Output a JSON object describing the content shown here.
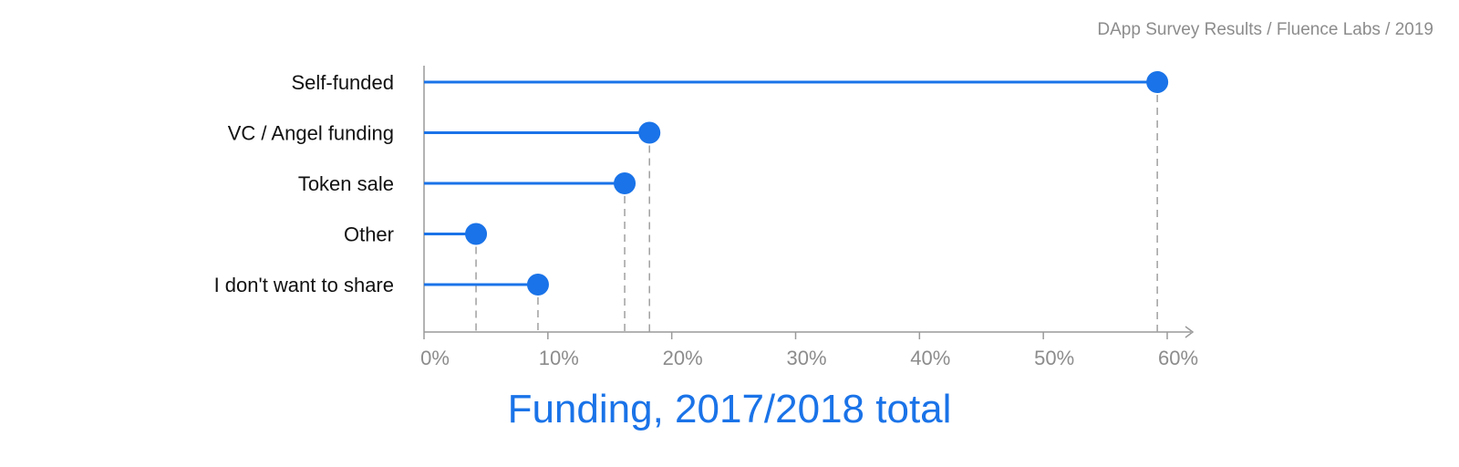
{
  "source_note": "DApp Survey Results / Fluence Labs / 2019",
  "chart_data": {
    "type": "lollipop",
    "title": "Funding, 2017/2018 total",
    "categories": [
      "Self-funded",
      "VC / Angel funding",
      "Token sale",
      "Other",
      "I don't want to share"
    ],
    "values": [
      59.2,
      18.2,
      16.2,
      4.2,
      9.2
    ],
    "xlim": [
      0,
      60
    ],
    "xticks": [
      0,
      10,
      20,
      30,
      40,
      50,
      60
    ],
    "xtick_labels": [
      "0%",
      "10%",
      "20%",
      "30%",
      "40%",
      "50%",
      "60%"
    ],
    "color": "#1a73e8",
    "grid": false
  }
}
